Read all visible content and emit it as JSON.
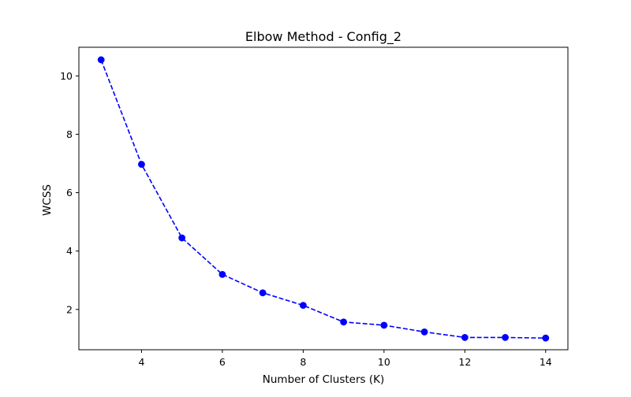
{
  "chart_data": {
    "type": "line",
    "title": "Elbow Method - Config_2",
    "xlabel": "Number of Clusters (K)",
    "ylabel": "WCSS",
    "xlim": [
      2.45,
      14.55
    ],
    "ylim": [
      0.62,
      10.98
    ],
    "xticks": [
      4,
      6,
      8,
      10,
      12,
      14
    ],
    "yticks": [
      2,
      4,
      6,
      8,
      10
    ],
    "grid": false,
    "series": [
      {
        "x": [
          3,
          4,
          5,
          6,
          7,
          8,
          9,
          10,
          11,
          12,
          13,
          14
        ],
        "y": [
          10.55,
          6.97,
          4.45,
          3.2,
          2.57,
          2.14,
          1.57,
          1.46,
          1.23,
          1.04,
          1.04,
          1.02
        ],
        "color": "#0000ff",
        "line_style": "dashed",
        "marker": "circle"
      }
    ]
  }
}
